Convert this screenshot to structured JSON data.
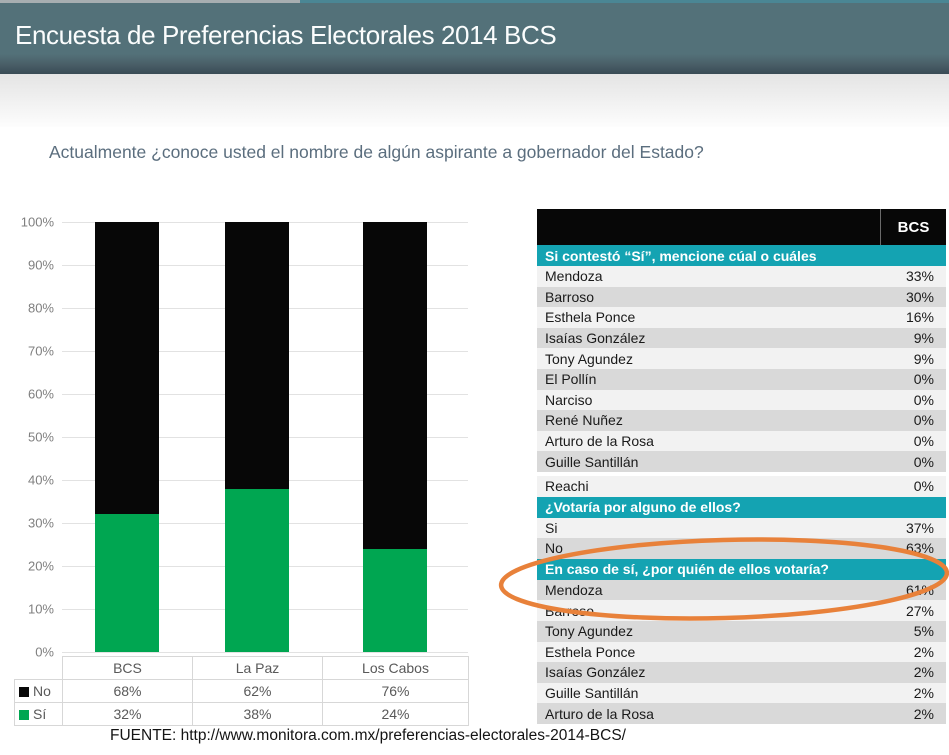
{
  "header": {
    "title": "Encuesta de Preferencias Electorales 2014 BCS",
    "banner_color": "#537179",
    "top_strip_left_color": "#a7aeb1",
    "top_strip_right_color": "#4a8694"
  },
  "question": "Actualmente ¿conoce usted el nombre de algún aspirante a gobernador del Estado?",
  "chart_data": {
    "type": "bar",
    "stacked": true,
    "categories": [
      "BCS",
      "La Paz",
      "Los Cabos"
    ],
    "series": [
      {
        "name": "No",
        "color": "#070707",
        "values_pct": [
          68,
          62,
          76
        ]
      },
      {
        "name": "Sí",
        "color": "#00a651",
        "values_pct": [
          32,
          38,
          24
        ]
      }
    ],
    "y_axis": {
      "min": 0,
      "max": 100,
      "step": 10,
      "tick_suffix": "%"
    },
    "grid": true,
    "legend_position": "table-below",
    "legend_table": {
      "columns": [
        "BCS",
        "La Paz",
        "Los Cabos"
      ],
      "rows": [
        {
          "label": "No",
          "swatch_color": "#070707",
          "values": [
            "68%",
            "62%",
            "76%"
          ]
        },
        {
          "label": "Sí",
          "swatch_color": "#00a651",
          "values": [
            "32%",
            "38%",
            "24%"
          ]
        }
      ]
    }
  },
  "table": {
    "value_column_header": "BCS",
    "section_header_color": "#14a3b2",
    "row_shades": [
      "#f2f2f2",
      "#d9d9d9"
    ],
    "sections": [
      {
        "title": "Si contestó “Sí”, mencione cúal o cuáles",
        "stripe_start": 0,
        "gap_before_row": 10,
        "rows": [
          [
            "Mendoza",
            "33%"
          ],
          [
            "Barroso",
            "30%"
          ],
          [
            "Esthela Ponce",
            "16%"
          ],
          [
            "Isaías González",
            "9%"
          ],
          [
            "Tony Agundez",
            "9%"
          ],
          [
            "El Pollín",
            "0%"
          ],
          [
            "Narciso",
            "0%"
          ],
          [
            "René Nuñez",
            "0%"
          ],
          [
            "Arturo de la Rosa",
            "0%"
          ],
          [
            "Guille Santillán",
            "0%"
          ],
          [
            "Reachi",
            "0%"
          ]
        ]
      },
      {
        "title": "¿Votaría por alguno de ellos?",
        "stripe_start": 0,
        "rows": [
          [
            "Si",
            "37%"
          ],
          [
            "No",
            "63%"
          ]
        ]
      },
      {
        "title": "En caso de sí, ¿por quién de ellos votaría?",
        "stripe_start": 1,
        "rows": [
          [
            "Mendoza",
            "61%"
          ],
          [
            "Barroso",
            "27%"
          ],
          [
            "Tony Agundez",
            "5%"
          ],
          [
            "Esthela Ponce",
            "2%"
          ],
          [
            "Isaías González",
            "2%"
          ],
          [
            "Guille Santillán",
            "2%"
          ],
          [
            "Arturo de la Rosa",
            "2%"
          ]
        ]
      }
    ]
  },
  "annotation": {
    "type": "ellipse",
    "color": "#e8813a",
    "highlights": "En caso de sí, ¿por quién de ellos votaría? — Mendoza 61%"
  },
  "footer": {
    "source": "FUENTE: http://www.monitora.com.mx/preferencias-electorales-2014-BCS/"
  }
}
